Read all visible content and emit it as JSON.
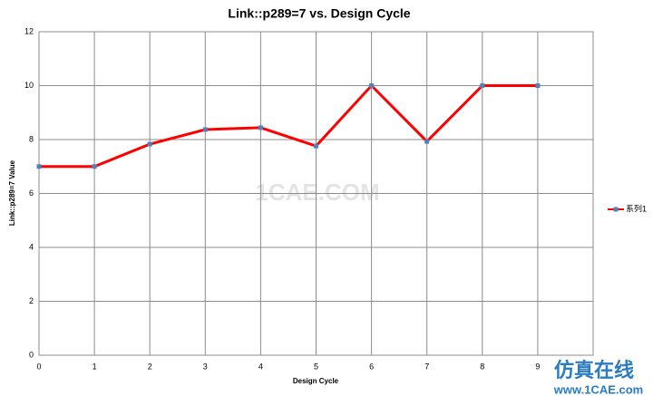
{
  "chart_data": {
    "type": "line",
    "title": "Link::p289=7 vs. Design Cycle",
    "x_label": "Design Cycle",
    "y_label": "Link::p289=7 Value",
    "x": [
      0,
      1,
      2,
      3,
      4,
      5,
      6,
      7,
      8,
      9
    ],
    "series": [
      {
        "name": "系列1",
        "color": "#ff0000",
        "marker_color": "#4f81bd",
        "values": [
          7.0,
          7.0,
          7.83,
          8.37,
          8.44,
          7.76,
          10,
          7.93,
          10,
          10
        ]
      }
    ],
    "xlim": [
      0,
      10
    ],
    "xticks": [
      0,
      1,
      2,
      3,
      4,
      5,
      6,
      7,
      8,
      9
    ],
    "ylim": [
      0,
      12
    ],
    "yticks": [
      0,
      2,
      4,
      6,
      8,
      10,
      12
    ],
    "grid": true,
    "legend": "right"
  },
  "watermarks": {
    "center": "1CAE.COM",
    "brand": "仿真在线",
    "url": "www.1CAE.com"
  }
}
